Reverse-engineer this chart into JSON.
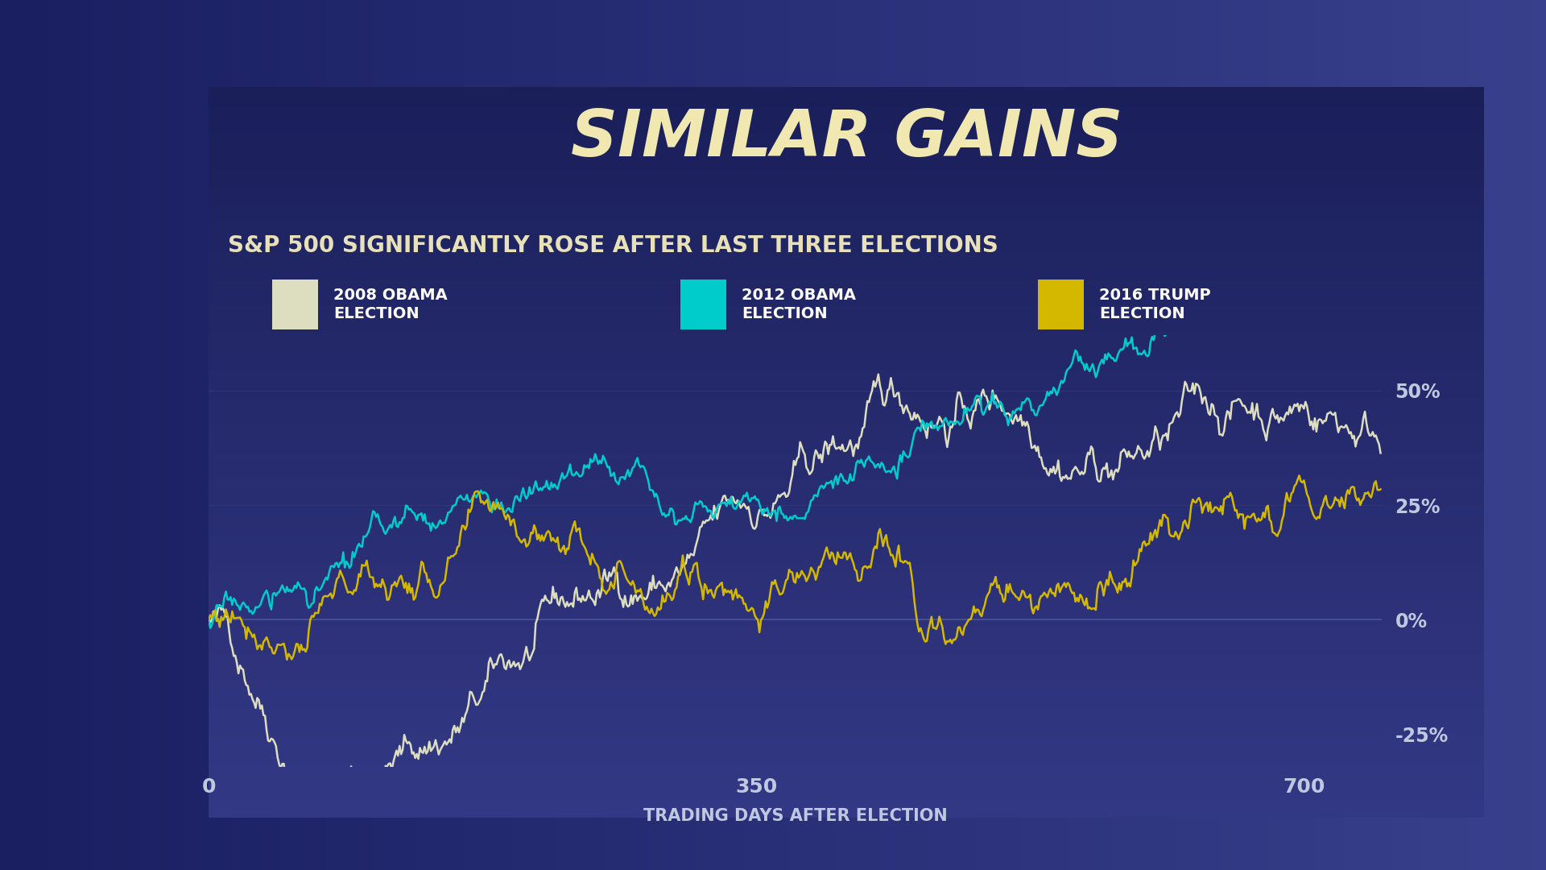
{
  "title": "SIMILAR GAINS",
  "subtitle": "S&P 500 SIGNIFICANTLY ROSE AFTER LAST THREE ELECTIONS",
  "xlabel": "TRADING DAYS AFTER ELECTION",
  "xlim": [
    0,
    750
  ],
  "ylim": [
    -0.32,
    0.62
  ],
  "xticks": [
    0,
    350,
    700
  ],
  "ytick_vals": [
    -0.25,
    0.0,
    0.25,
    0.5
  ],
  "ytick_labels": [
    "-25%",
    "0%",
    "25%",
    "50%"
  ],
  "outer_bg": "#2a3080",
  "chart_panel_bg": "#1e2468",
  "chart_plot_bg": "#1e2468",
  "subtitle_bar_bg": "#0d0f1a",
  "title_color": "#f0e8b0",
  "subtitle_color": "#e8e0b8",
  "tick_label_color": "#c0c8e0",
  "grid_color": "#323878",
  "line_2008_color": "#ddddc0",
  "line_2012_color": "#00cccc",
  "line_2016_color": "#d4b800",
  "legend_labels": [
    "2008 OBAMA\nELECTION",
    "2012 OBAMA\nELECTION",
    "2016 TRUMP\nELECTION"
  ],
  "n_points": 750
}
